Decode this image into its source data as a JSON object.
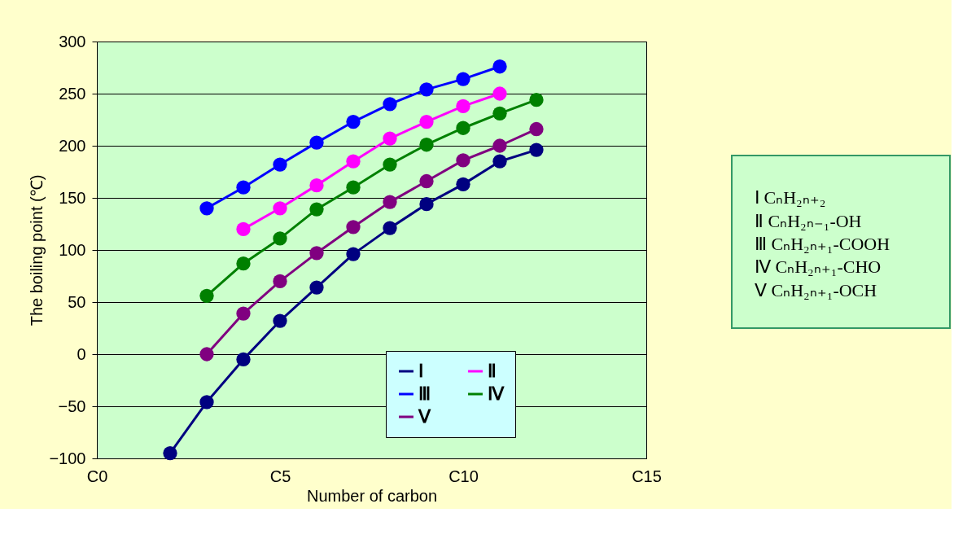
{
  "chart_data": {
    "type": "line",
    "xlabel": "Number of carbon",
    "ylabel": "The boiling point (℃)",
    "categories": [
      "C0",
      null,
      null,
      null,
      null,
      "C5",
      null,
      null,
      null,
      null,
      "C10",
      null,
      null,
      null,
      null,
      "C15"
    ],
    "ylim": [
      -100,
      300
    ],
    "yticks": [
      -100,
      -50,
      0,
      50,
      100,
      150,
      200,
      250,
      300
    ],
    "grid": "y",
    "legend": "bottom right",
    "marker": "circle",
    "line_style": "solid",
    "series": [
      {
        "name": "Ⅰ",
        "color": "#000080",
        "values": [
          null,
          null,
          -95,
          -46,
          -5,
          32,
          64,
          96,
          121,
          144,
          163,
          185,
          196,
          null,
          null,
          null
        ]
      },
      {
        "name": "Ⅱ",
        "color": "#ff00ff",
        "values": [
          null,
          null,
          null,
          null,
          120,
          140,
          162,
          185,
          207,
          223,
          238,
          250,
          null,
          null,
          null,
          null
        ]
      },
      {
        "name": "Ⅲ",
        "color": "#0000ff",
        "values": [
          null,
          null,
          null,
          140,
          160,
          182,
          203,
          223,
          240,
          254,
          264,
          276,
          null,
          null,
          null,
          null
        ]
      },
      {
        "name": "Ⅳ",
        "color": "#008000",
        "values": [
          null,
          null,
          null,
          56,
          87,
          111,
          139,
          160,
          182,
          201,
          217,
          231,
          244,
          null,
          null,
          null
        ]
      },
      {
        "name": "Ⅴ",
        "color": "#800080",
        "values": [
          null,
          null,
          null,
          0,
          39,
          70,
          97,
          122,
          146,
          166,
          186,
          200,
          216,
          null,
          null,
          null
        ]
      }
    ],
    "annotations": [
      "Ⅰ  CₙH₂ₙ₊₂",
      "Ⅱ  CₙH₂ₙ₋₁-OH",
      "Ⅲ  CₙH₂ₙ₊₁-COOH",
      "Ⅳ  CₙH₂ₙ₊₁-CHO",
      "Ⅴ  CₙH₂ₙ₊₁-OCH"
    ]
  }
}
